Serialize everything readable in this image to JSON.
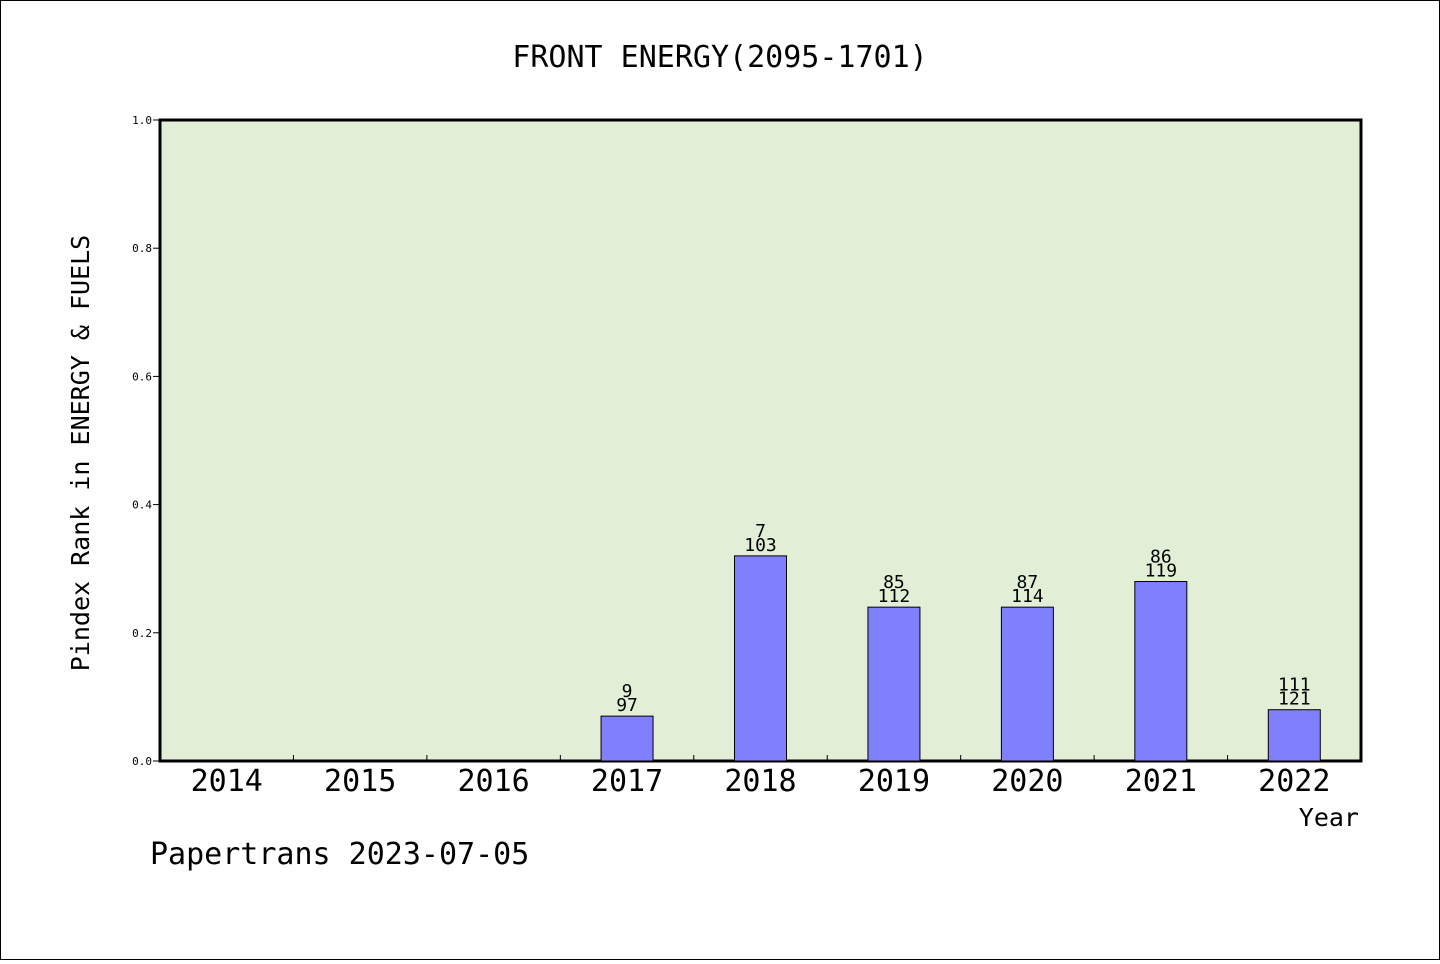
{
  "chart_data": {
    "type": "bar",
    "title": "FRONT ENERGY(2095-1701)",
    "ylabel": "Pindex Rank in ENERGY & FUELS",
    "xlabel": "Year",
    "ylim": [
      0,
      1.0
    ],
    "yticks": [
      "0.0",
      "0.2",
      "0.4",
      "0.6",
      "0.8",
      "1.0"
    ],
    "categories": [
      "2014",
      "2015",
      "2016",
      "2017",
      "2018",
      "2019",
      "2020",
      "2021",
      "2022"
    ],
    "values": [
      null,
      null,
      null,
      0.07,
      0.32,
      0.24,
      0.24,
      0.28,
      0.08
    ],
    "rank_labels": [
      "",
      "",
      "",
      "9",
      "7",
      "85",
      "87",
      "86",
      "111"
    ],
    "total_labels": [
      "",
      "",
      "",
      "97",
      "103",
      "112",
      "114",
      "119",
      "121"
    ],
    "grid": false,
    "colors": {
      "plot_bg": "#e2efd6",
      "bar_fill": "#8080ff",
      "bar_stroke": "#000000"
    }
  },
  "footer": {
    "credit": "Papertrans 2023-07-05"
  }
}
